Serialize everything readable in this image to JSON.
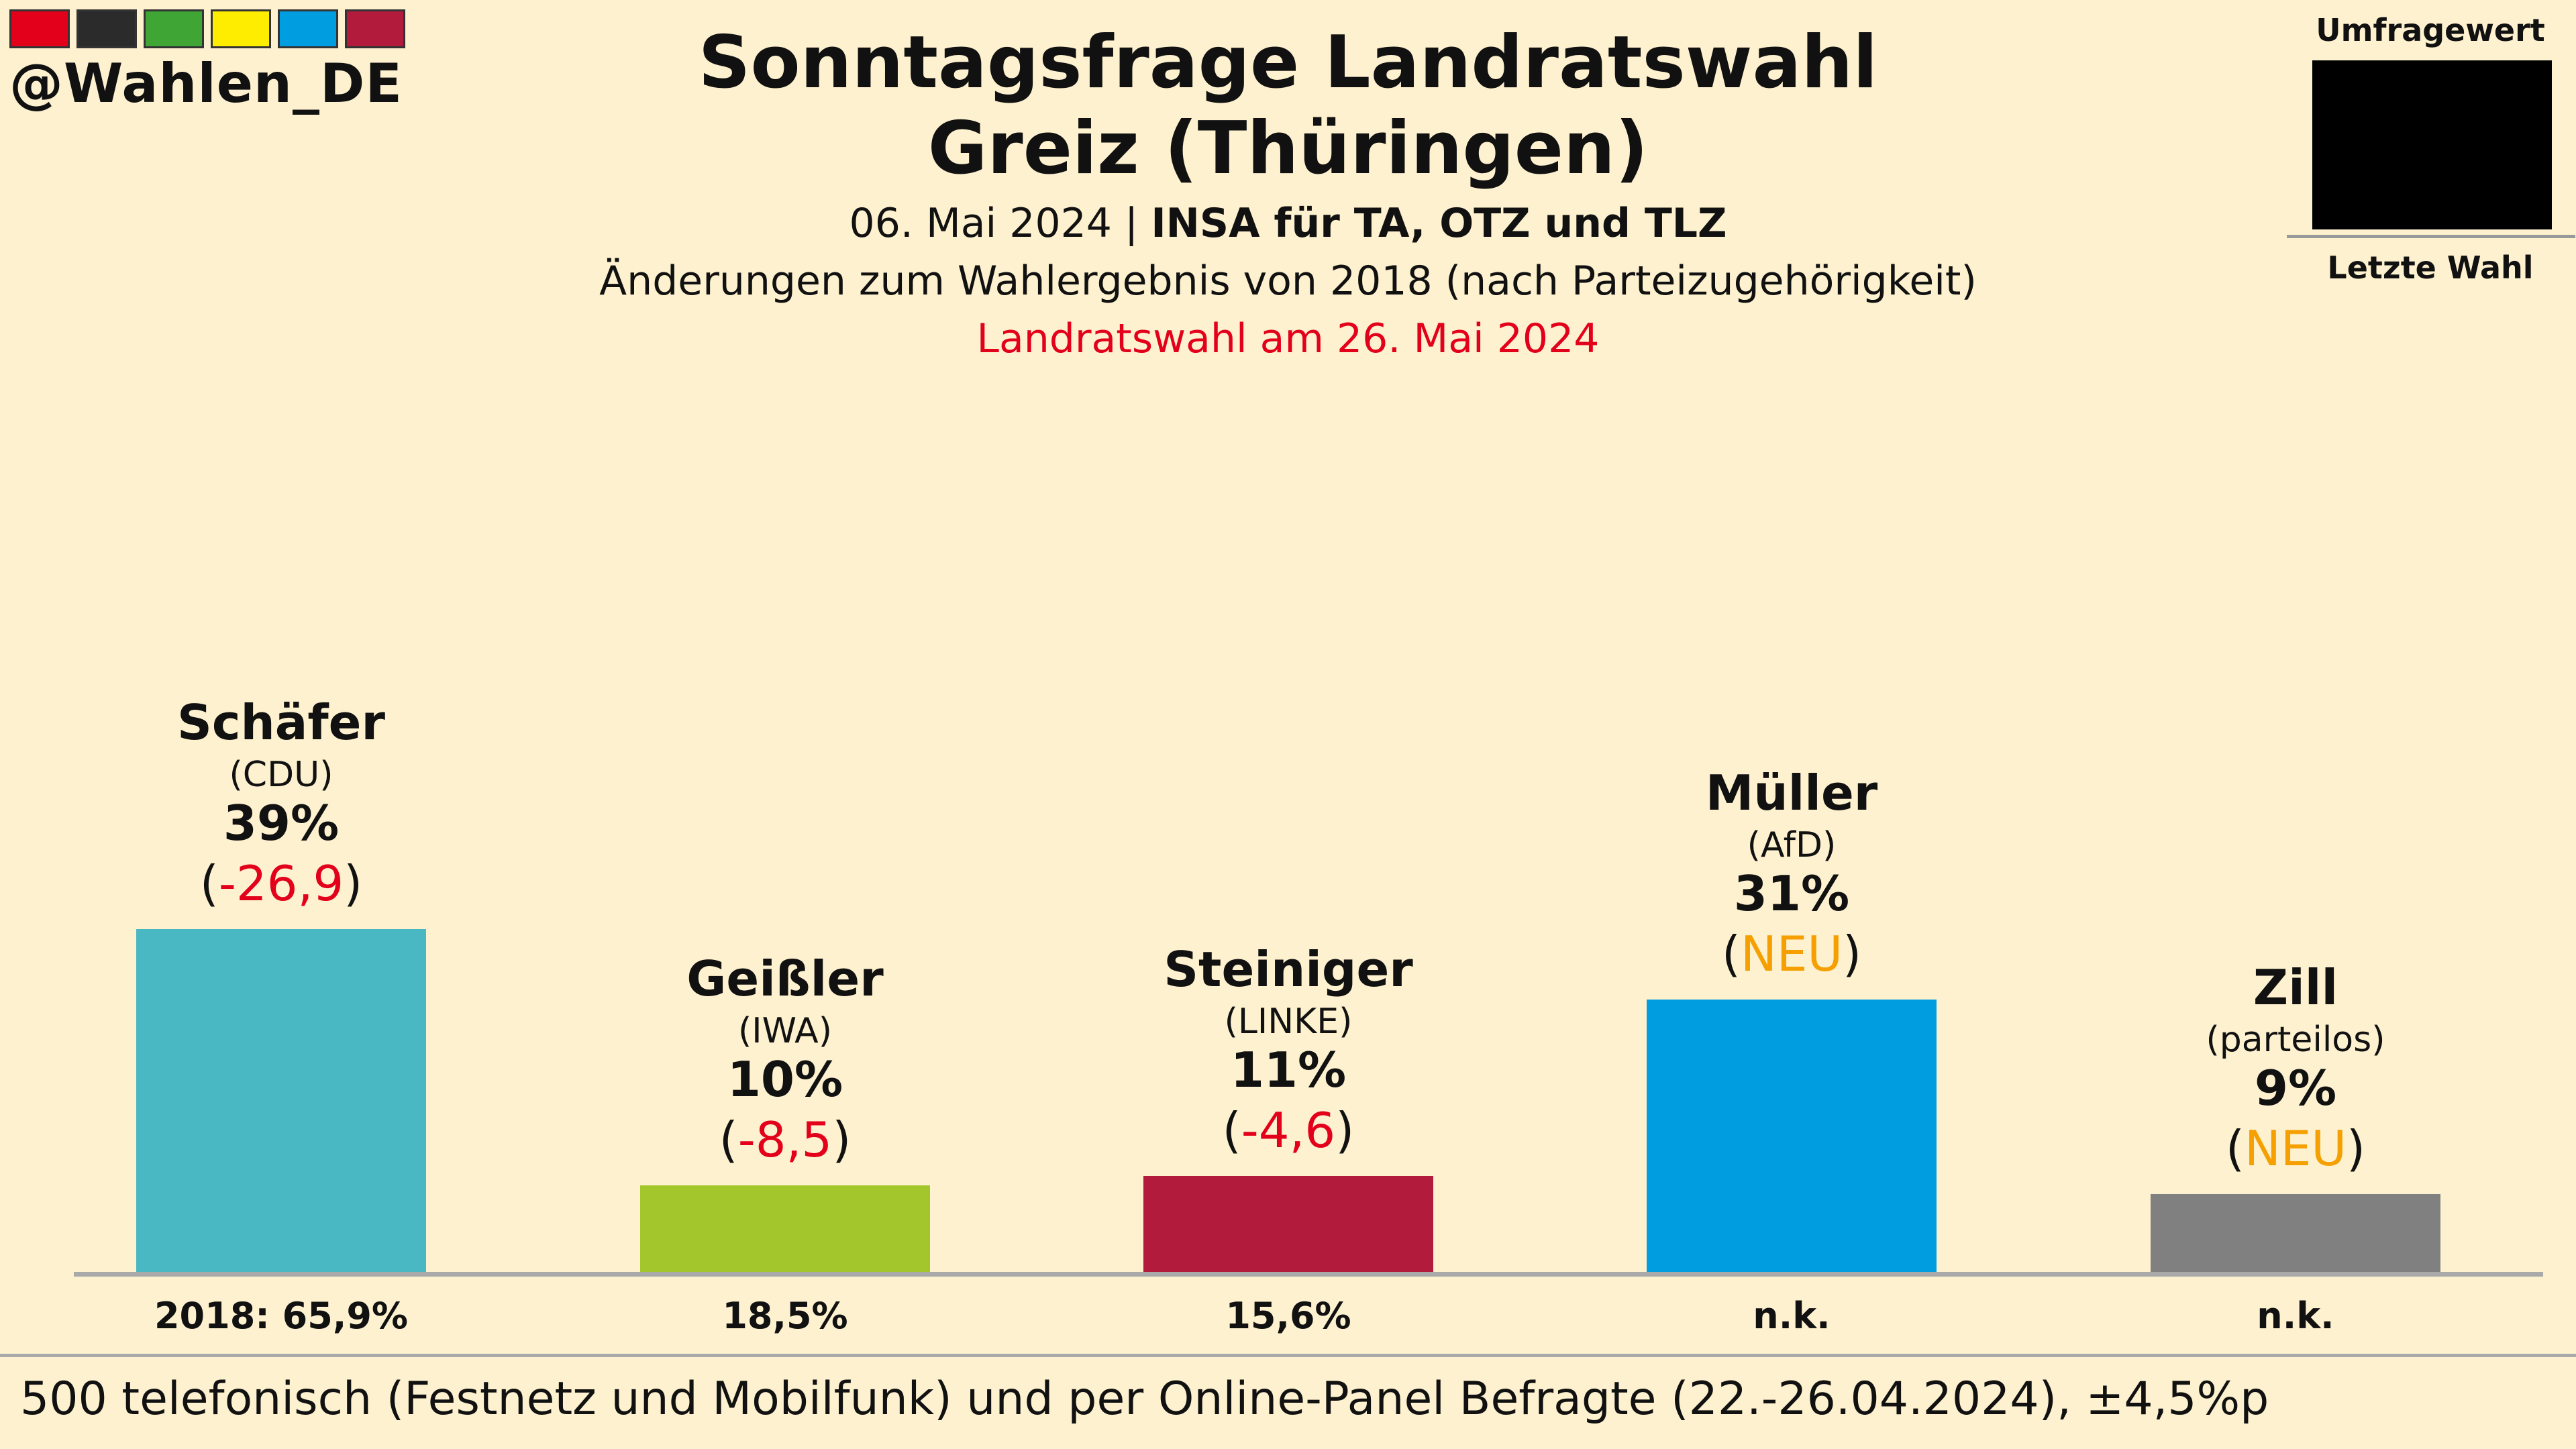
{
  "brand": {
    "handle": "@Wahlen_DE",
    "flag_colors": [
      "#e3001b",
      "#2b2b2b",
      "#3fa535",
      "#ffed00",
      "#009ee0",
      "#b31b3c"
    ]
  },
  "header": {
    "title_line1": "Sonntagsfrage Landratswahl",
    "title_line2": "Greiz (Thüringen)",
    "date": "06. Mai 2024",
    "separator": " | ",
    "institute": "INSA für TA, OTZ und TLZ",
    "note": "Änderungen zum Wahlergebnis von 2018 (nach Parteizugehörigkeit)",
    "election": "Landratswahl am 26. Mai 2024"
  },
  "legend": {
    "top": "Umfragewert",
    "bottom": "Letzte Wahl"
  },
  "chart_data": {
    "type": "bar",
    "ylim": [
      0,
      100
    ],
    "categories": [
      "Schäfer",
      "Geißler",
      "Steiniger",
      "Müller",
      "Zill"
    ],
    "bars": [
      {
        "candidate": "Schäfer",
        "party": "(CDU)",
        "value": 39,
        "label": "39%",
        "change_open": "(",
        "change": "-26,9",
        "change_close": ")",
        "change_color": "#e3001b",
        "color": "#4ab8c2",
        "previous": "2018: 65,9%"
      },
      {
        "candidate": "Geißler",
        "party": "(IWA)",
        "value": 10,
        "label": "10%",
        "change_open": "(",
        "change": "-8,5",
        "change_close": ")",
        "change_color": "#e3001b",
        "color": "#a2c62b",
        "previous": "18,5%"
      },
      {
        "candidate": "Steiniger",
        "party": "(LINKE)",
        "value": 11,
        "label": "11%",
        "change_open": "(",
        "change": "-4,6",
        "change_close": ")",
        "change_color": "#e3001b",
        "color": "#b31b3c",
        "previous": "15,6%"
      },
      {
        "candidate": "Müller",
        "party": "(AfD)",
        "value": 31,
        "label": "31%",
        "change_open": "(",
        "change": "NEU",
        "change_close": ")",
        "change_color": "#f5a000",
        "color": "#009ee0",
        "previous": "n.k."
      },
      {
        "candidate": "Zill",
        "party": "(parteilos)",
        "value": 9,
        "label": "9%",
        "change_open": "(",
        "change": "NEU",
        "change_close": ")",
        "change_color": "#f5a000",
        "color": "#808080",
        "previous": "n.k."
      }
    ]
  },
  "footer": {
    "methodology": "500 telefonisch (Festnetz und Mobilfunk) und per Online-Panel Befragte (22.-26.04.2024), ±4,5%p"
  }
}
